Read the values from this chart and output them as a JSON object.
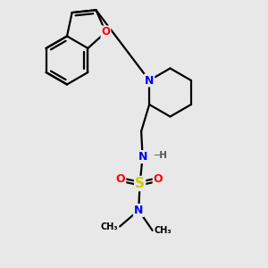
{
  "bg_color": "#e8e8e8",
  "atom_colors": {
    "C": "#000000",
    "N": "#0000ff",
    "O": "#ff0000",
    "S": "#cccc00",
    "H": "#555555"
  },
  "bond_color": "#000000",
  "bond_width": 1.6,
  "fig_bg": "#e8e8e8",
  "xlim": [
    0,
    10
  ],
  "ylim": [
    0,
    10
  ]
}
